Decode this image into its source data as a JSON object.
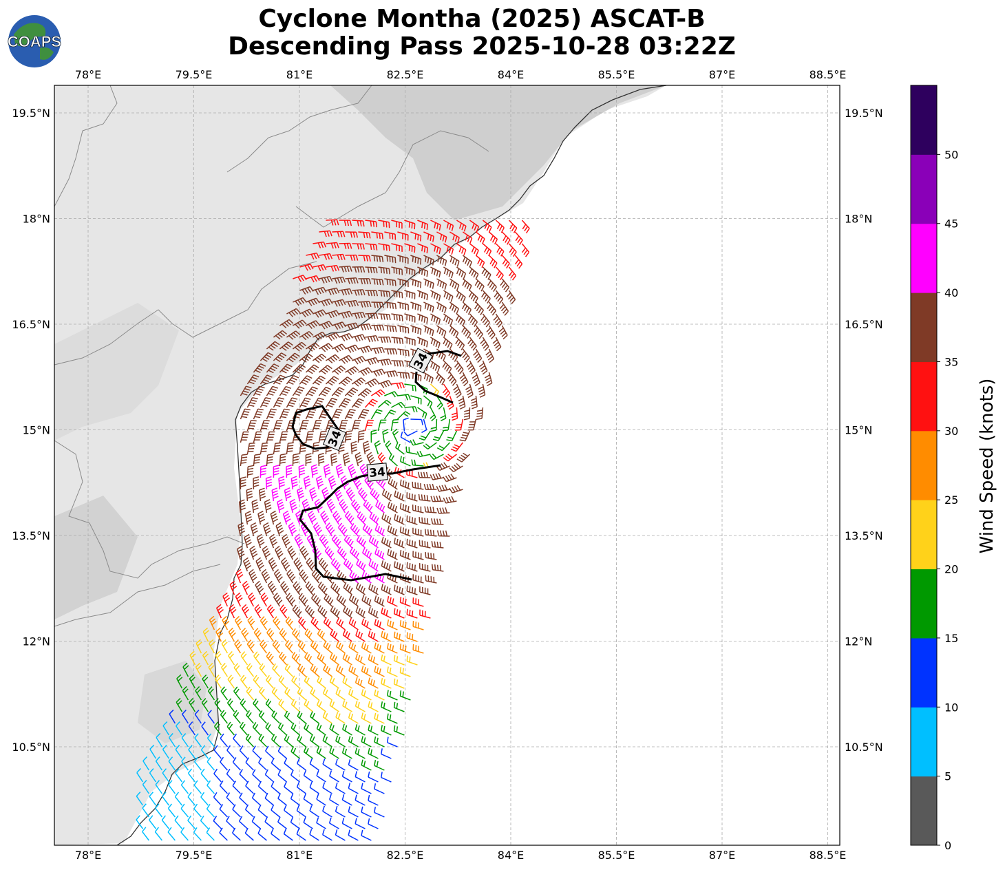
{
  "title_line1": "Cyclone Montha (2025) ASCAT-B",
  "title_line2": "Descending Pass 2025-10-28 03:22Z",
  "logo_text": "COAPS",
  "lon_ticks": [
    "78°E",
    "79.5°E",
    "81°E",
    "82.5°E",
    "84°E",
    "85.5°E",
    "87°E",
    "88.5°E"
  ],
  "lat_ticks": [
    "19.5°N",
    "18°N",
    "16.5°N",
    "15°N",
    "13.5°N",
    "12°N",
    "10.5°N"
  ],
  "colorbar": {
    "label": "Wind Speed (knots)",
    "ticks": [
      "0",
      "5",
      "10",
      "15",
      "20",
      "25",
      "30",
      "35",
      "40",
      "45",
      "50"
    ],
    "colors": [
      "#595959",
      "#00bfff",
      "#0033ff",
      "#009900",
      "#ffd21a",
      "#ff8c00",
      "#ff1111",
      "#7f3a26",
      "#ff00ff",
      "#8a00b8",
      "#2e005e"
    ]
  },
  "contour_labels": [
    "34",
    "34",
    "34"
  ]
}
